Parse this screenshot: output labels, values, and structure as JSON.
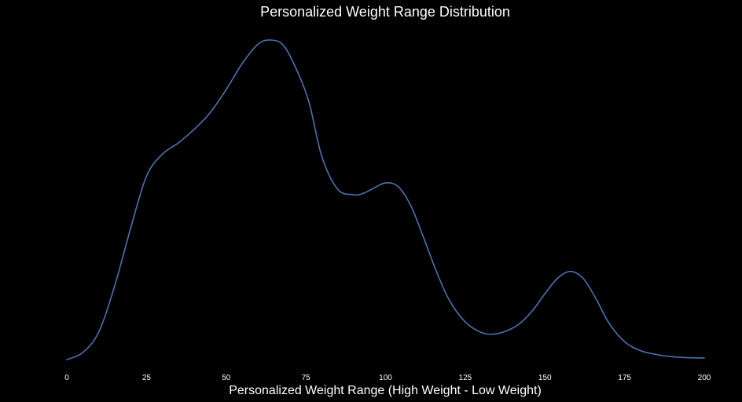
{
  "chart_data": {
    "type": "line",
    "title": "Personalized Weight Range Distribution",
    "xlabel": "Personalized Weight Range (High Weight - Low Weight)",
    "ylabel": "",
    "xlim": [
      0,
      200
    ],
    "ylim": [
      0,
      1
    ],
    "x_ticks": [
      0,
      25,
      50,
      75,
      100,
      125,
      150,
      175,
      200
    ],
    "y_axis_visible": false,
    "grid": false,
    "legend": "none",
    "series": [
      {
        "line_color": "#4c72b0",
        "x": [
          0,
          5,
          10,
          15,
          20,
          25,
          30,
          35,
          40,
          45,
          50,
          55,
          60,
          64,
          68,
          72,
          76,
          80,
          85,
          90,
          93,
          96,
          100,
          104,
          108,
          112,
          116,
          120,
          125,
          130,
          134,
          138,
          142,
          146,
          150,
          154,
          158,
          162,
          166,
          170,
          175,
          180,
          185,
          190,
          195,
          200
        ],
        "y": [
          0.0,
          0.022,
          0.086,
          0.23,
          0.41,
          0.574,
          0.643,
          0.678,
          0.721,
          0.773,
          0.845,
          0.926,
          0.987,
          1.0,
          0.983,
          0.909,
          0.805,
          0.636,
          0.533,
          0.516,
          0.52,
          0.535,
          0.553,
          0.541,
          0.48,
          0.38,
          0.275,
          0.186,
          0.118,
          0.085,
          0.08,
          0.09,
          0.112,
          0.152,
          0.206,
          0.255,
          0.276,
          0.254,
          0.191,
          0.116,
          0.056,
          0.028,
          0.016,
          0.009,
          0.006,
          0.005
        ]
      }
    ]
  }
}
